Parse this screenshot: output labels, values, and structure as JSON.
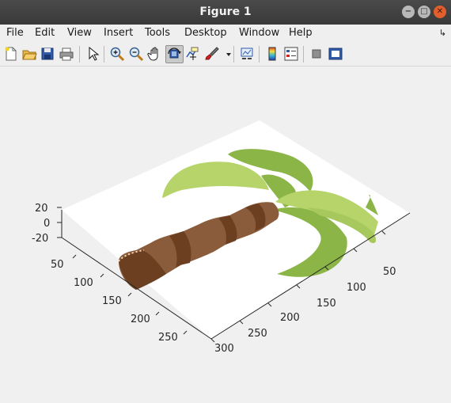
{
  "window": {
    "title": "Figure 1"
  },
  "menu": [
    "File",
    "Edit",
    "View",
    "Insert",
    "Tools",
    "Desktop",
    "Window",
    "Help"
  ],
  "toolbar": {
    "icons": [
      "new-figure-icon",
      "open-file-icon",
      "save-icon",
      "print-icon",
      "select-arrow-icon",
      "zoom-in-icon",
      "zoom-out-icon",
      "pan-hand-icon",
      "rotate-3d-icon",
      "data-cursor-icon",
      "brush-icon",
      "brush-dropdown-icon",
      "link-plot-icon",
      "colorbar-icon",
      "legend-icon",
      "hide-plot-tools-icon",
      "show-plot-tools-icon"
    ],
    "pressed": "rotate-3d-icon"
  },
  "axes": {
    "z_ticks": [
      "20",
      "0",
      "-20"
    ],
    "x_ticks": [
      "50",
      "100",
      "150",
      "200",
      "250"
    ],
    "y_ticks": [
      "50",
      "100",
      "150",
      "200",
      "250",
      "300"
    ]
  },
  "colors": {
    "trunk_light": "#8a5c3c",
    "trunk_dark": "#6b3f1f",
    "leaf_light": "#b6d46a",
    "leaf_dark": "#8bb547",
    "close_button": "#e25f2d"
  }
}
